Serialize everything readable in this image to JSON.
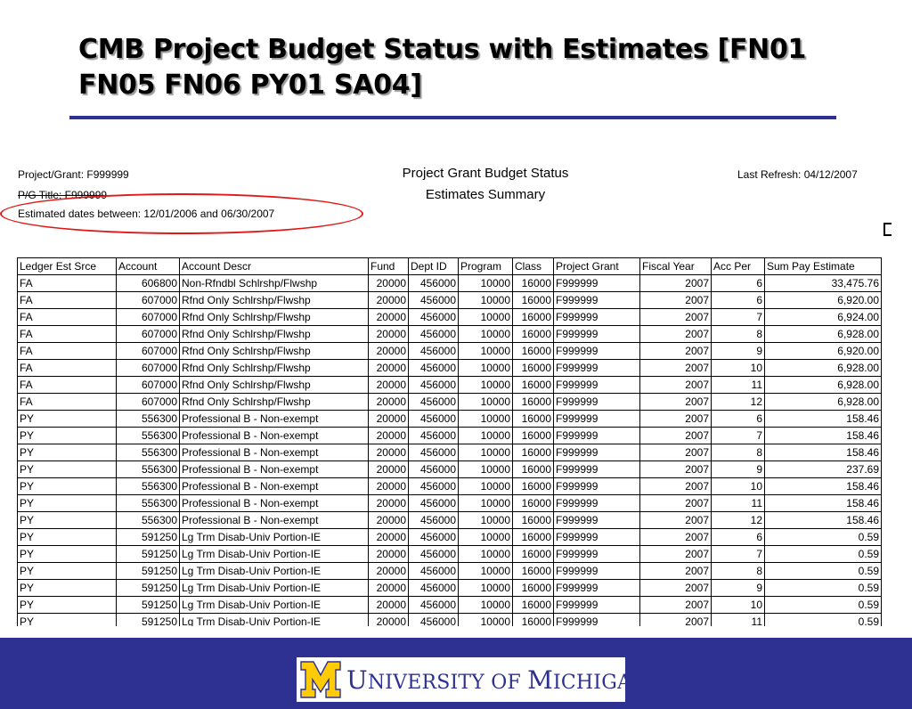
{
  "slide": {
    "title": "CMB Project Budget Status with Estimates [FN01 FN05 FN06 PY01 SA04]"
  },
  "report": {
    "project_grant": "Project/Grant: F999999",
    "pg_title": "P/G Title: F999999",
    "estimated_dates": "Estimated dates between: 12/01/2006 and 06/30/2007",
    "title_line1": "Project Grant Budget Status",
    "title_line2": "Estimates Summary",
    "last_refresh": "Last Refresh: 04/12/2007"
  },
  "table": {
    "columns": [
      "Ledger Est Srce",
      "Account",
      "Account Descr",
      "Fund",
      "Dept ID",
      "Program",
      "Class",
      "Project Grant",
      "Fiscal Year",
      "Acc Per",
      "Sum Pay Estimate"
    ],
    "rows": [
      [
        "FA",
        "606800",
        "Non-Rfndbl Schlrshp/Flwshp",
        "20000",
        "456000",
        "10000",
        "16000",
        "F999999",
        "2007",
        "6",
        "33,475.76"
      ],
      [
        "FA",
        "607000",
        "Rfnd Only Schlrshp/Flwshp",
        "20000",
        "456000",
        "10000",
        "16000",
        "F999999",
        "2007",
        "6",
        "6,920.00"
      ],
      [
        "FA",
        "607000",
        "Rfnd Only Schlrshp/Flwshp",
        "20000",
        "456000",
        "10000",
        "16000",
        "F999999",
        "2007",
        "7",
        "6,924.00"
      ],
      [
        "FA",
        "607000",
        "Rfnd Only Schlrshp/Flwshp",
        "20000",
        "456000",
        "10000",
        "16000",
        "F999999",
        "2007",
        "8",
        "6,928.00"
      ],
      [
        "FA",
        "607000",
        "Rfnd Only Schlrshp/Flwshp",
        "20000",
        "456000",
        "10000",
        "16000",
        "F999999",
        "2007",
        "9",
        "6,920.00"
      ],
      [
        "FA",
        "607000",
        "Rfnd Only Schlrshp/Flwshp",
        "20000",
        "456000",
        "10000",
        "16000",
        "F999999",
        "2007",
        "10",
        "6,928.00"
      ],
      [
        "FA",
        "607000",
        "Rfnd Only Schlrshp/Flwshp",
        "20000",
        "456000",
        "10000",
        "16000",
        "F999999",
        "2007",
        "11",
        "6,928.00"
      ],
      [
        "FA",
        "607000",
        "Rfnd Only Schlrshp/Flwshp",
        "20000",
        "456000",
        "10000",
        "16000",
        "F999999",
        "2007",
        "12",
        "6,928.00"
      ],
      [
        "PY",
        "556300",
        "Professional B - Non-exempt",
        "20000",
        "456000",
        "10000",
        "16000",
        "F999999",
        "2007",
        "6",
        "158.46"
      ],
      [
        "PY",
        "556300",
        "Professional B - Non-exempt",
        "20000",
        "456000",
        "10000",
        "16000",
        "F999999",
        "2007",
        "7",
        "158.46"
      ],
      [
        "PY",
        "556300",
        "Professional B - Non-exempt",
        "20000",
        "456000",
        "10000",
        "16000",
        "F999999",
        "2007",
        "8",
        "158.46"
      ],
      [
        "PY",
        "556300",
        "Professional B - Non-exempt",
        "20000",
        "456000",
        "10000",
        "16000",
        "F999999",
        "2007",
        "9",
        "237.69"
      ],
      [
        "PY",
        "556300",
        "Professional B - Non-exempt",
        "20000",
        "456000",
        "10000",
        "16000",
        "F999999",
        "2007",
        "10",
        "158.46"
      ],
      [
        "PY",
        "556300",
        "Professional B - Non-exempt",
        "20000",
        "456000",
        "10000",
        "16000",
        "F999999",
        "2007",
        "11",
        "158.46"
      ],
      [
        "PY",
        "556300",
        "Professional B - Non-exempt",
        "20000",
        "456000",
        "10000",
        "16000",
        "F999999",
        "2007",
        "12",
        "158.46"
      ],
      [
        "PY",
        "591250",
        "Lg Trm Disab-Univ Portion-IE",
        "20000",
        "456000",
        "10000",
        "16000",
        "F999999",
        "2007",
        "6",
        "0.59"
      ],
      [
        "PY",
        "591250",
        "Lg Trm Disab-Univ Portion-IE",
        "20000",
        "456000",
        "10000",
        "16000",
        "F999999",
        "2007",
        "7",
        "0.59"
      ],
      [
        "PY",
        "591250",
        "Lg Trm Disab-Univ Portion-IE",
        "20000",
        "456000",
        "10000",
        "16000",
        "F999999",
        "2007",
        "8",
        "0.59"
      ],
      [
        "PY",
        "591250",
        "Lg Trm Disab-Univ Portion-IE",
        "20000",
        "456000",
        "10000",
        "16000",
        "F999999",
        "2007",
        "9",
        "0.59"
      ],
      [
        "PY",
        "591250",
        "Lg Trm Disab-Univ Portion-IE",
        "20000",
        "456000",
        "10000",
        "16000",
        "F999999",
        "2007",
        "10",
        "0.59"
      ],
      [
        "PY",
        "591250",
        "Lg Trm Disab-Univ Portion-IE",
        "20000",
        "456000",
        "10000",
        "16000",
        "F999999",
        "2007",
        "11",
        "0.59"
      ]
    ]
  },
  "footer": {
    "logo_name": "UNIVERSITY OF MICHIGAN",
    "logo_initial_1": "U",
    "logo_rest_1": "NIVERSITY OF ",
    "logo_initial_2": "M",
    "logo_rest_2": "ICHIGAN",
    "background_color": "#2e3192",
    "logo_m_color": "#ffcb05"
  },
  "annotation": {
    "ellipse_color": "#e01818"
  }
}
